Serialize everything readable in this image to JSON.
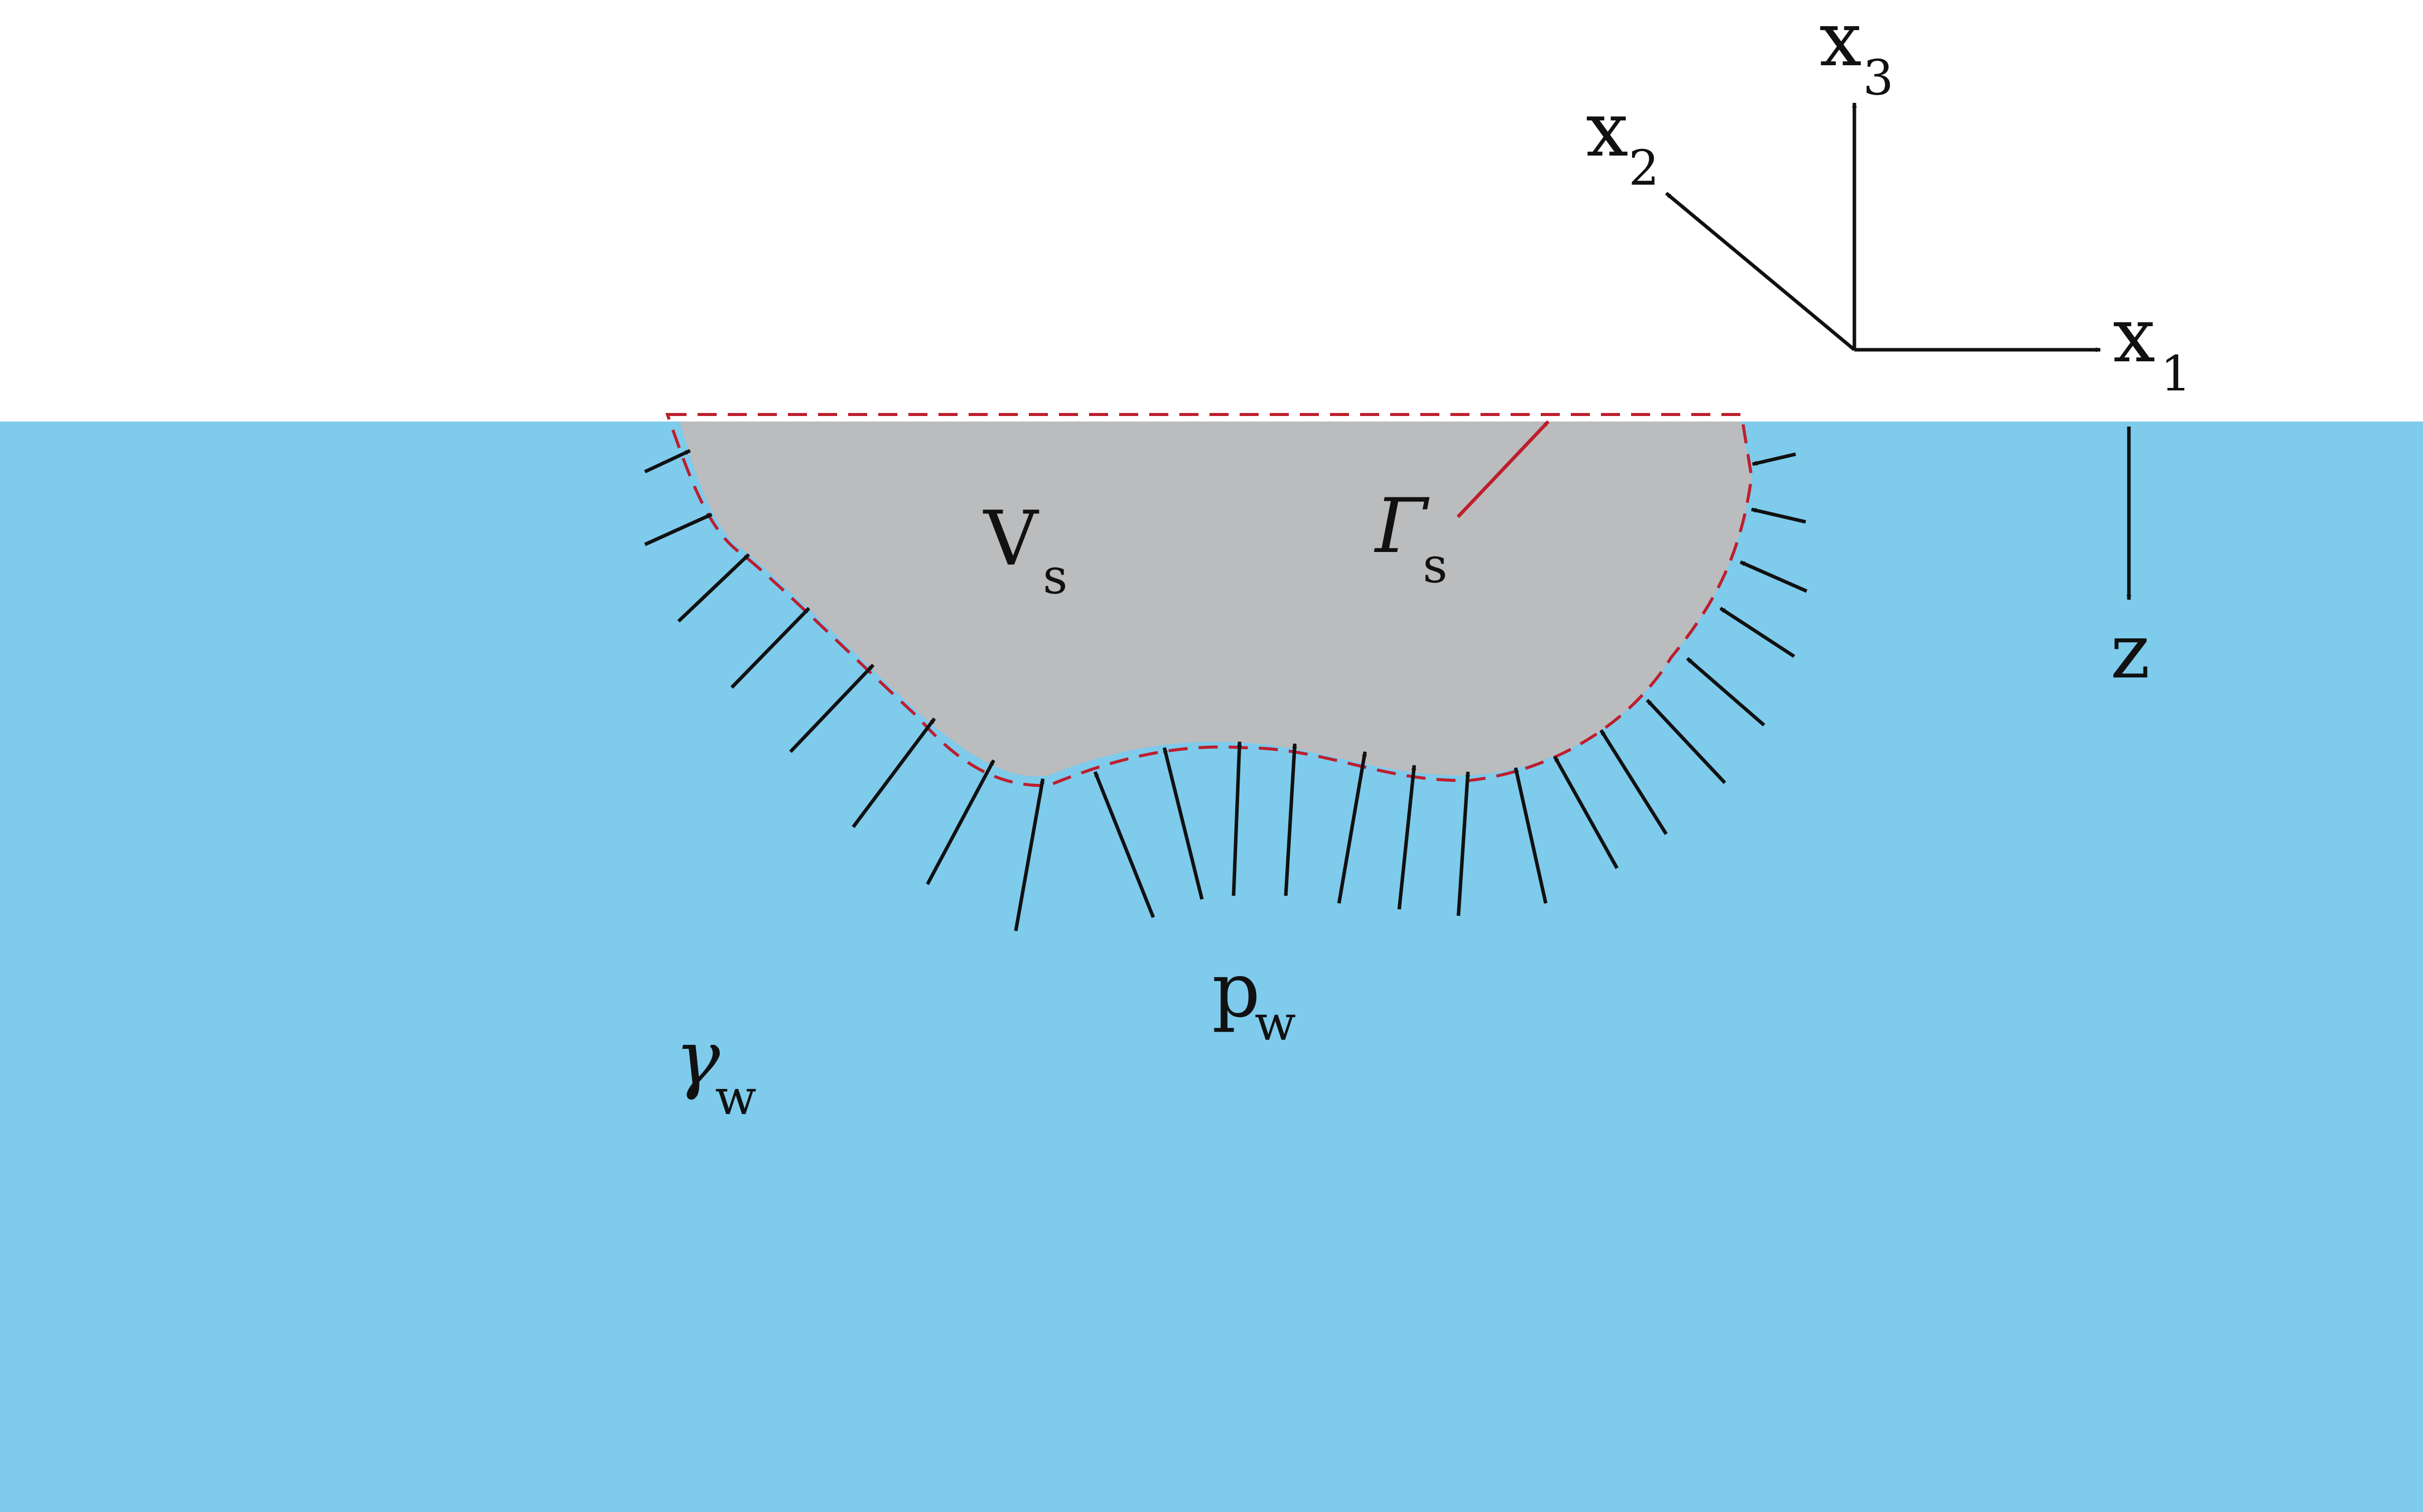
{
  "colors": {
    "water": "#7ecbec",
    "body": "#bbbcbe",
    "boundary": "#be1e2d",
    "arrow": "#111111",
    "background": "#ffffff"
  },
  "labels": {
    "x1": {
      "main": "x",
      "sub": "1"
    },
    "x2": {
      "main": "x",
      "sub": "2"
    },
    "x3": {
      "main": "x",
      "sub": "3"
    },
    "z": "z",
    "volume": {
      "main": "V",
      "sub": "s"
    },
    "surface": {
      "main": "Γ",
      "sub": "s"
    },
    "pressure": {
      "main": "p",
      "sub": "w"
    },
    "unit_weight": {
      "main": "γ",
      "sub": "w"
    }
  },
  "icons": {
    "pressure_arrows": "arrow-icon",
    "axis_arrows": "arrowhead-icon"
  }
}
